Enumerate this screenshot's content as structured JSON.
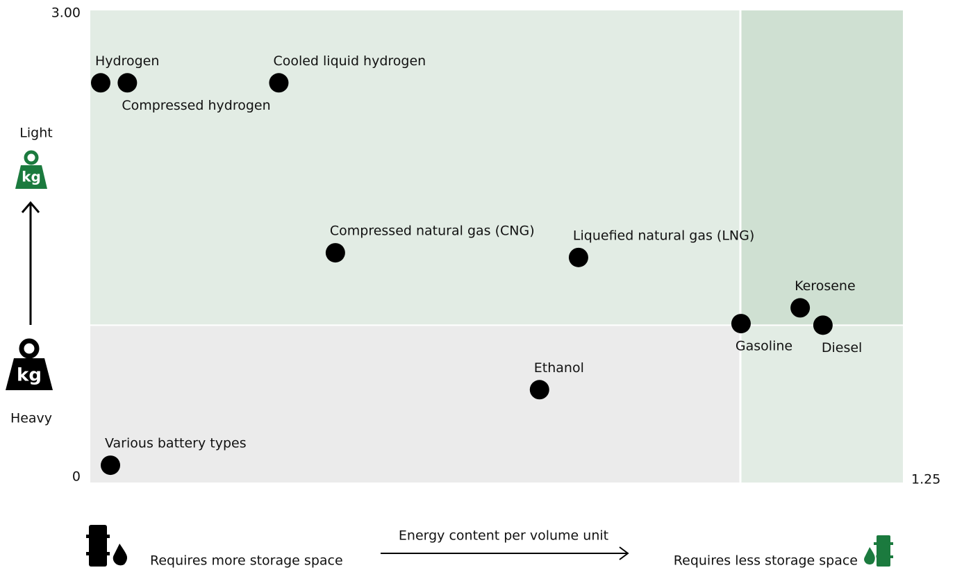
{
  "chart_data": {
    "type": "scatter",
    "xlabel": "Energy content per volume unit",
    "x_left_label": "Requires more storage space",
    "x_right_label": "Requires less storage space",
    "y_top_label": "Light",
    "y_bottom_label": "Heavy",
    "icon_label": "kg",
    "xlim": [
      0,
      1.25
    ],
    "ylim": [
      0,
      3
    ],
    "xticks": [
      1.25
    ],
    "yticks": [
      0,
      {
        "value": 3,
        "label": "3.00"
      }
    ],
    "x_reference": 1,
    "y_reference": 1,
    "color": "#000000",
    "series": [
      {
        "name": null,
        "labels": [
          "Hydrogen",
          "Compressed hydrogen",
          "Cooled liquid hydrogen",
          "Compressed natural gas (CNG)",
          "Liquefied natural gas (LNG)",
          "Kerosene",
          "Gasoline",
          "Diesel",
          "Ethanol",
          "Various battery types"
        ],
        "x": [
          0.016,
          0.057,
          0.29,
          0.377,
          0.751,
          1.092,
          1.001,
          1.127,
          0.691,
          0.031
        ],
        "values": [
          2.54,
          2.54,
          2.54,
          1.46,
          1.43,
          1.11,
          1.01,
          1.0,
          0.59,
          0.11
        ]
      }
    ]
  }
}
